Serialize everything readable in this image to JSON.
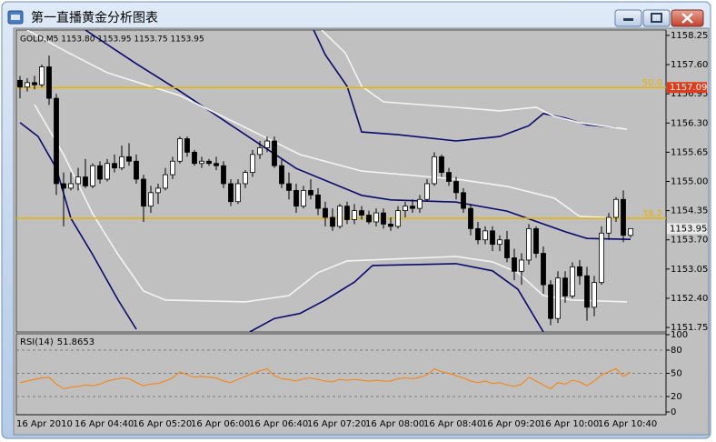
{
  "window": {
    "title": "第一直播黄金分析图表"
  },
  "chart_data": [
    {
      "type": "candlestick",
      "title": "GOLD,M5 1153.80 1153.95 1153.75 1153.95",
      "categories": [
        "16 Apr 2010",
        null,
        null,
        null,
        null,
        null,
        null,
        null,
        "16 Apr 04:40",
        null,
        null,
        null,
        null,
        null,
        null,
        null,
        "16 Apr 05:20",
        null,
        null,
        null,
        null,
        null,
        null,
        null,
        "16 Apr 06:00",
        null,
        null,
        null,
        null,
        null,
        null,
        null,
        "16 Apr 06:40",
        null,
        null,
        null,
        null,
        null,
        null,
        null,
        "16 Apr 07:20",
        null,
        null,
        null,
        null,
        null,
        null,
        null,
        "16 Apr 08:00",
        null,
        null,
        null,
        null,
        null,
        null,
        null,
        "16 Apr 08:40",
        null,
        null,
        null,
        null,
        null,
        null,
        null,
        "16 Apr 09:20",
        null,
        null,
        null,
        null,
        null,
        null,
        null,
        "16 Apr 10:00",
        null,
        null,
        null,
        null,
        null,
        null,
        null,
        "16 Apr 10:40",
        null,
        null,
        null,
        null
      ],
      "open": [
        1157.25,
        1157.1,
        1157.2,
        1157.15,
        1157.55,
        1156.85,
        1154.95,
        1154.85,
        1154.95,
        1155.1,
        1154.9,
        1155.35,
        1155.05,
        1155.4,
        1155.3,
        1155.55,
        1155.45,
        1155.05,
        1154.45,
        1154.75,
        1154.85,
        1155.15,
        1155.45,
        1155.95,
        1155.65,
        1155.4,
        1155.45,
        1155.4,
        1155.35,
        1154.95,
        1154.55,
        1154.95,
        1155.2,
        1155.6,
        1155.75,
        1155.9,
        1155.35,
        1154.95,
        1154.8,
        1154.45,
        1154.8,
        1154.7,
        1154.4,
        1154.2,
        1154.0,
        1154.45,
        1154.15,
        1154.35,
        1154.25,
        1154.1,
        1154.3,
        1154.05,
        1154.0,
        1154.35,
        1154.45,
        1154.4,
        1154.6,
        1154.95,
        1155.55,
        1155.2,
        1155.0,
        1154.75,
        1154.4,
        1153.95,
        1153.7,
        1153.9,
        1153.6,
        1153.7,
        1153.3,
        1153.0,
        1153.25,
        1153.95,
        1153.4,
        1152.7,
        1151.95,
        1152.85,
        1152.45,
        1153.1,
        1152.9,
        1152.2,
        1152.75,
        1153.85,
        1154.2,
        1154.6,
        1153.8
      ],
      "high": [
        1157.35,
        1157.3,
        1157.35,
        1157.6,
        1157.8,
        1156.95,
        1155.2,
        1155.2,
        1155.3,
        1155.5,
        1155.4,
        1155.45,
        1155.5,
        1155.6,
        1155.8,
        1155.85,
        1155.6,
        1155.15,
        1154.9,
        1154.95,
        1155.3,
        1155.55,
        1156.0,
        1156.0,
        1155.7,
        1155.55,
        1155.5,
        1155.55,
        1155.45,
        1155.05,
        1155.05,
        1155.25,
        1155.7,
        1155.9,
        1156.0,
        1156.0,
        1155.5,
        1155.2,
        1154.95,
        1154.9,
        1155.05,
        1154.85,
        1154.55,
        1154.4,
        1154.5,
        1154.55,
        1154.5,
        1154.45,
        1154.35,
        1154.4,
        1154.4,
        1154.2,
        1154.45,
        1154.55,
        1154.6,
        1154.7,
        1155.05,
        1155.65,
        1155.6,
        1155.3,
        1155.1,
        1154.85,
        1154.5,
        1154.1,
        1154.0,
        1154.0,
        1153.8,
        1153.9,
        1153.5,
        1153.4,
        1154.05,
        1154.0,
        1153.55,
        1152.8,
        1153.0,
        1153.0,
        1153.2,
        1153.25,
        1153.1,
        1152.9,
        1154.0,
        1154.3,
        1154.65,
        1154.8,
        1153.95
      ],
      "low": [
        1156.85,
        1157.0,
        1157.05,
        1157.1,
        1156.7,
        1154.7,
        1154.0,
        1154.8,
        1154.8,
        1154.85,
        1154.85,
        1154.95,
        1155.0,
        1155.2,
        1155.25,
        1155.35,
        1154.95,
        1154.1,
        1154.3,
        1154.5,
        1154.8,
        1155.05,
        1155.4,
        1155.55,
        1155.35,
        1155.3,
        1155.35,
        1155.25,
        1154.85,
        1154.45,
        1154.5,
        1154.85,
        1155.1,
        1155.5,
        1155.65,
        1155.3,
        1154.85,
        1154.6,
        1154.3,
        1154.4,
        1154.6,
        1154.25,
        1154.0,
        1153.9,
        1153.95,
        1154.05,
        1154.05,
        1154.15,
        1154.05,
        1154.0,
        1153.95,
        1153.9,
        1153.95,
        1154.2,
        1154.3,
        1154.3,
        1154.55,
        1154.9,
        1155.1,
        1154.9,
        1154.6,
        1154.3,
        1153.8,
        1153.6,
        1153.6,
        1153.45,
        1153.45,
        1153.2,
        1152.8,
        1152.7,
        1153.15,
        1153.3,
        1152.5,
        1151.8,
        1151.85,
        1152.3,
        1152.4,
        1152.7,
        1151.9,
        1152.0,
        1152.7,
        1153.7,
        1154.1,
        1153.65,
        1153.75
      ],
      "close": [
        1157.1,
        1157.2,
        1157.15,
        1157.55,
        1156.85,
        1154.95,
        1154.85,
        1154.95,
        1155.1,
        1154.9,
        1155.35,
        1155.05,
        1155.4,
        1155.3,
        1155.55,
        1155.45,
        1155.05,
        1154.45,
        1154.75,
        1154.85,
        1155.15,
        1155.45,
        1155.95,
        1155.65,
        1155.4,
        1155.45,
        1155.4,
        1155.35,
        1154.95,
        1154.55,
        1154.95,
        1155.2,
        1155.6,
        1155.75,
        1155.9,
        1155.35,
        1154.95,
        1154.8,
        1154.45,
        1154.8,
        1154.7,
        1154.4,
        1154.2,
        1154.0,
        1154.45,
        1154.15,
        1154.35,
        1154.25,
        1154.1,
        1154.3,
        1154.05,
        1154.0,
        1154.35,
        1154.45,
        1154.4,
        1154.6,
        1154.95,
        1155.55,
        1155.2,
        1155.0,
        1154.75,
        1154.4,
        1153.95,
        1153.7,
        1153.9,
        1153.6,
        1153.7,
        1153.3,
        1153.0,
        1153.25,
        1153.95,
        1153.4,
        1152.7,
        1151.95,
        1152.85,
        1152.45,
        1153.1,
        1152.9,
        1152.2,
        1152.75,
        1153.85,
        1154.2,
        1154.6,
        1153.8,
        1153.95
      ],
      "bull_color": "#ffffff",
      "bear_color": "#000000",
      "ylim": [
        1151.65,
        1158.37
      ],
      "yticks": [
        1158.25,
        {
          "value": 1157.6,
          "label": "1157.60"
        },
        1156.95,
        {
          "value": 1156.3,
          "label": "1156.30"
        },
        1155.65,
        {
          "value": 1155.0,
          "label": "1155.00"
        },
        1154.35,
        {
          "value": 1153.7,
          "label": "1153.70"
        },
        1153.05,
        {
          "value": 1152.4,
          "label": "1152.40"
        },
        1151.75
      ],
      "bands": [
        {
          "color": "#0a0a6e",
          "x": [
            9,
            16,
            22,
            31,
            38,
            47,
            51,
            60,
            67,
            75,
            78,
            84
          ],
          "values": [
            1158.37,
            1157.62,
            1157.01,
            1156.04,
            1155.29,
            1154.69,
            1154.59,
            1154.54,
            1154.34,
            1153.88,
            1153.73,
            1153.71
          ]
        },
        {
          "color": "#0a0a6e",
          "x": [
            40.4,
            42,
            45,
            47,
            52,
            60,
            66,
            70,
            72,
            75,
            78,
            82
          ],
          "values": [
            1158.37,
            1157.82,
            1157.12,
            1156.1,
            1156.04,
            1155.9,
            1156.0,
            1156.24,
            1156.51,
            1156.41,
            1156.26,
            1156.2
          ]
        },
        {
          "color": "#0a0a6e",
          "x": [
            0,
            2.5,
            5,
            7,
            10,
            13.5,
            16,
            24,
            31.6,
            35,
            38.5,
            42,
            46,
            48.5,
            60,
            65,
            68.5,
            72
          ],
          "values": [
            1156.31,
            1156.0,
            1155.29,
            1154.18,
            1153.37,
            1152.36,
            1151.71,
            null,
            1151.65,
            1151.95,
            1152.06,
            1152.36,
            1152.76,
            1153.13,
            1153.17,
            1153.01,
            1152.6,
            1151.65
          ]
        },
        {
          "color": "#f4f4f4",
          "x": [
            1,
            6,
            12,
            22,
            31,
            38.5,
            47,
            60,
            67,
            73.5,
            77,
            83.5
          ],
          "values": [
            1158.37,
            1157.92,
            1157.42,
            1156.91,
            1156.2,
            1155.6,
            1155.23,
            1155.05,
            1154.89,
            1154.63,
            1154.22,
            1154.18
          ]
        },
        {
          "color": "#f4f4f4",
          "x": [
            2,
            6,
            10,
            13.5,
            17,
            20,
            31,
            37,
            41,
            45,
            60,
            65,
            68.5,
            72,
            76,
            83.5
          ],
          "values": [
            1156.71,
            1155.6,
            1154.28,
            1153.37,
            1152.56,
            1152.36,
            1152.32,
            1152.46,
            1152.97,
            1153.23,
            1153.33,
            1153.21,
            1152.97,
            1152.46,
            1152.36,
            1152.32
          ]
        },
        {
          "color": "#f4f4f4",
          "x": [
            41.5,
            44.75,
            47,
            50,
            60,
            66,
            71,
            73.5,
            77,
            83.5
          ],
          "values": [
            1158.37,
            1157.86,
            1157.12,
            1156.77,
            1156.65,
            1156.57,
            1156.65,
            1156.45,
            1156.31,
            1156.16
          ]
        }
      ],
      "levels": [
        {
          "value": 1157.09,
          "label": "50.0",
          "color": "#e8b400",
          "tag": true,
          "tag_color": "#e23a1a"
        },
        {
          "value": 1154.18,
          "label": "38.2",
          "color": "#e8b400",
          "tag": false
        }
      ],
      "price_tag_color": "#e8e8e8"
    },
    {
      "type": "line",
      "title": "RSI(14)",
      "values": [
        38,
        40,
        42,
        44,
        45,
        36,
        30,
        32,
        33,
        35,
        34,
        36,
        40,
        42,
        44,
        43,
        38,
        34,
        36,
        37,
        40,
        44,
        52,
        48,
        45,
        46,
        45,
        44,
        40,
        38,
        42,
        46,
        50,
        53,
        56,
        47,
        43,
        42,
        40,
        43,
        44,
        42,
        40,
        39,
        42,
        41,
        42,
        41,
        40,
        41,
        40,
        40,
        43,
        44,
        43,
        45,
        48,
        56,
        52,
        50,
        47,
        44,
        40,
        38,
        40,
        37,
        38,
        35,
        33,
        36,
        45,
        40,
        35,
        30,
        38,
        36,
        41,
        39,
        34,
        40,
        48,
        52,
        56,
        46,
        51.8653
      ],
      "color": "#ff7f00",
      "ylim": [
        0,
        100
      ],
      "yticks": [
        0,
        20,
        50,
        80,
        100
      ],
      "levels": [
        20,
        50,
        80
      ]
    }
  ]
}
